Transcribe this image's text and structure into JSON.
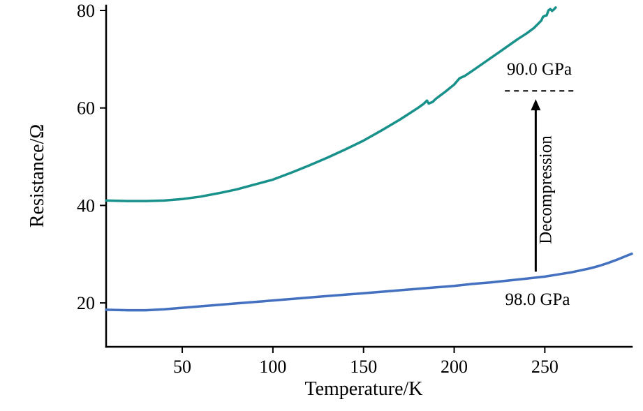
{
  "chart_data": {
    "type": "line",
    "title": "",
    "xlabel": "Temperature/K",
    "ylabel": "Resistance/Ω",
    "xlim": [
      8,
      298
    ],
    "ylim": [
      11,
      81
    ],
    "xticks": [
      50,
      100,
      150,
      200,
      250
    ],
    "yticks": [
      20,
      40,
      60,
      80
    ],
    "grid": false,
    "legend": "none",
    "series": [
      {
        "name": "90.0 GPa",
        "color": "#18918b",
        "x": [
          8,
          20,
          30,
          40,
          50,
          60,
          70,
          80,
          88,
          95,
          100,
          110,
          120,
          130,
          140,
          150,
          160,
          170,
          175,
          180,
          183,
          185,
          186,
          188,
          190,
          195,
          200,
          203,
          206,
          210,
          215,
          220,
          225,
          230,
          235,
          240,
          244,
          248,
          249,
          250,
          251,
          252,
          253,
          254,
          255,
          256
        ],
        "y": [
          41,
          40.9,
          40.9,
          41,
          41.3,
          41.8,
          42.5,
          43.3,
          44.1,
          44.8,
          45.3,
          46.7,
          48.2,
          49.8,
          51.5,
          53.3,
          55.4,
          57.6,
          58.8,
          60.0,
          60.8,
          61.5,
          60.9,
          61.2,
          61.9,
          63.3,
          64.8,
          66.1,
          66.6,
          67.6,
          68.9,
          70.2,
          71.5,
          72.8,
          74.1,
          75.3,
          76.4,
          77.9,
          78.7,
          78.9,
          79.0,
          80.0,
          80.3,
          79.9,
          80.2,
          80.6
        ]
      },
      {
        "name": "98.0 GPa",
        "color": "#4470c0",
        "x": [
          8,
          20,
          30,
          40,
          50,
          60,
          70,
          80,
          90,
          100,
          110,
          120,
          130,
          140,
          150,
          160,
          170,
          180,
          190,
          200,
          210,
          220,
          230,
          240,
          250,
          255,
          260,
          265,
          270,
          275,
          280,
          285,
          290,
          294,
          298
        ],
        "y": [
          18.6,
          18.5,
          18.5,
          18.7,
          19.0,
          19.3,
          19.6,
          19.9,
          20.2,
          20.5,
          20.8,
          21.1,
          21.4,
          21.7,
          22.0,
          22.3,
          22.6,
          22.9,
          23.2,
          23.5,
          23.9,
          24.2,
          24.6,
          25.0,
          25.4,
          25.7,
          26.0,
          26.3,
          26.7,
          27.1,
          27.6,
          28.2,
          28.9,
          29.5,
          30.1
        ]
      }
    ],
    "annotations": {
      "texts": [
        {
          "text": "90.0 GPa",
          "x": 247,
          "y": 66.8,
          "rotate": 0,
          "size": 25
        },
        {
          "text": "98.0 GPa",
          "x": 246,
          "y": 19.6,
          "rotate": 0,
          "size": 25
        },
        {
          "text": "Decompression",
          "x": 253.5,
          "y": 43.2,
          "rotate": -90,
          "size": 25
        }
      ],
      "dashed_line": {
        "x1": 228,
        "x2": 266,
        "y": 63.5
      },
      "arrow": {
        "x": 245,
        "y_from": 26.4,
        "y_to": 61.8
      }
    }
  }
}
